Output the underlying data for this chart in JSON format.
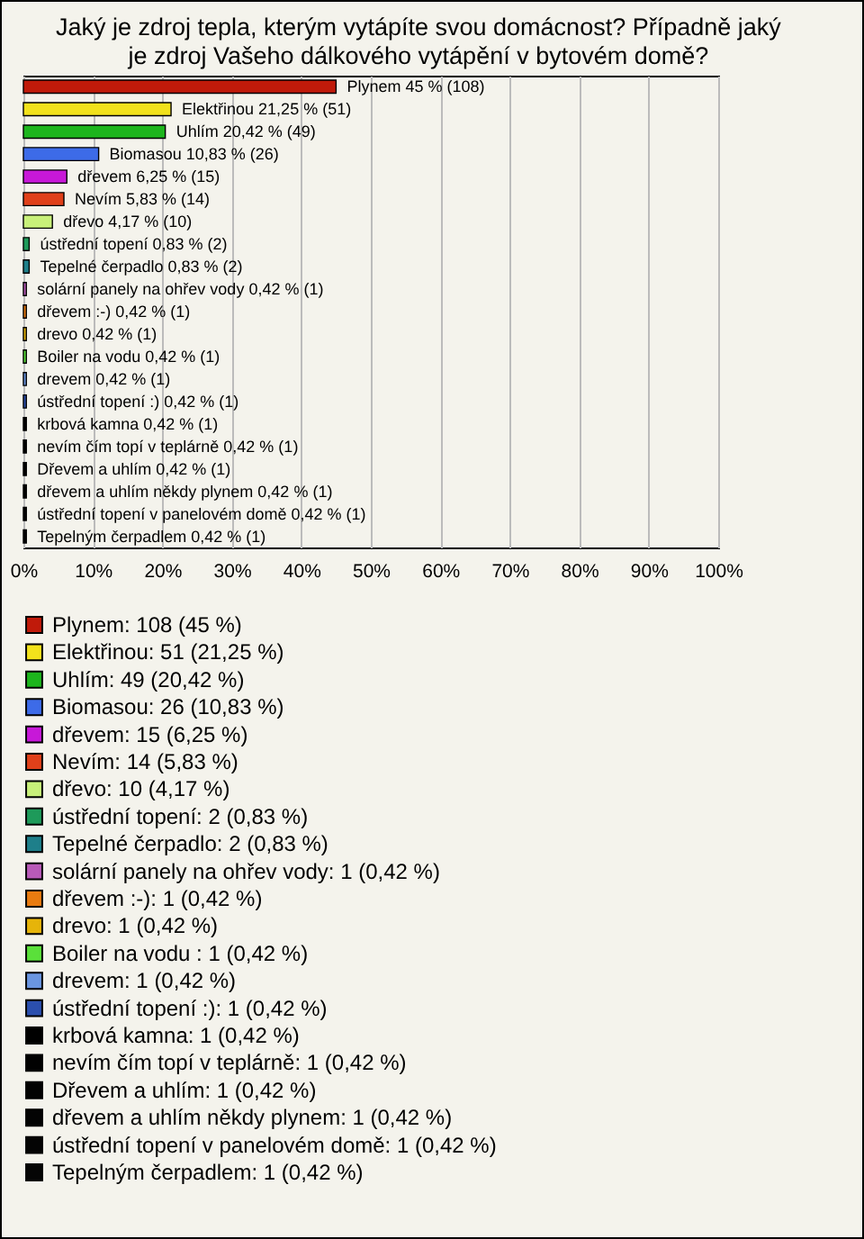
{
  "chart_data": {
    "type": "bar",
    "orientation": "horizontal",
    "title": "Jaký je zdroj tepla, kterým vytápíte svou domácnost? Případně jaký je zdroj Vašeho dálkového vytápění v bytovém domě?",
    "categories": [
      null,
      null,
      null,
      null,
      null,
      null,
      null,
      null,
      null,
      null,
      null,
      null,
      null,
      null,
      null,
      null,
      null,
      null,
      null,
      null,
      null
    ],
    "xlim": [
      0,
      100
    ],
    "xticks": [
      {
        "value": 0,
        "label": "0%"
      },
      {
        "value": 10,
        "label": "10%"
      },
      {
        "value": 20,
        "label": "20%"
      },
      {
        "value": 30,
        "label": "30%"
      },
      {
        "value": 40,
        "label": "40%"
      },
      {
        "value": 50,
        "label": "50%"
      },
      {
        "value": 60,
        "label": "60%"
      },
      {
        "value": 70,
        "label": "70%"
      },
      {
        "value": 80,
        "label": "80%"
      },
      {
        "value": 90,
        "label": "90%"
      },
      {
        "value": 100,
        "label": "100%"
      }
    ],
    "grid": "x",
    "legend": "bottom",
    "tick_labels": "x",
    "series": [
      {
        "name": "Plynem: 108 (45 %)",
        "color": "#c01a0a",
        "values": [
          45,
          null,
          null,
          null,
          null,
          null,
          null,
          null,
          null,
          null,
          null,
          null,
          null,
          null,
          null,
          null,
          null,
          null,
          null,
          null,
          null
        ],
        "value_labels": [
          "Plynem 45 % (108)",
          null,
          null,
          null,
          null,
          null,
          null,
          null,
          null,
          null,
          null,
          null,
          null,
          null,
          null,
          null,
          null,
          null,
          null,
          null,
          null
        ]
      },
      {
        "name": "Elektřinou: 51 (21,25 %)",
        "color": "#f2e21c",
        "values": [
          null,
          21.25,
          null,
          null,
          null,
          null,
          null,
          null,
          null,
          null,
          null,
          null,
          null,
          null,
          null,
          null,
          null,
          null,
          null,
          null,
          null
        ],
        "value_labels": [
          null,
          "Elektřinou 21,25 % (51)",
          null,
          null,
          null,
          null,
          null,
          null,
          null,
          null,
          null,
          null,
          null,
          null,
          null,
          null,
          null,
          null,
          null,
          null,
          null
        ]
      },
      {
        "name": "Uhlím: 49 (20,42 %)",
        "color": "#1db51d",
        "values": [
          null,
          null,
          20.42,
          null,
          null,
          null,
          null,
          null,
          null,
          null,
          null,
          null,
          null,
          null,
          null,
          null,
          null,
          null,
          null,
          null,
          null
        ],
        "value_labels": [
          null,
          null,
          "Uhlím 20,42 % (49)",
          null,
          null,
          null,
          null,
          null,
          null,
          null,
          null,
          null,
          null,
          null,
          null,
          null,
          null,
          null,
          null,
          null,
          null
        ]
      },
      {
        "name": "Biomasou: 26 (10,83 %)",
        "color": "#3d6be8",
        "values": [
          null,
          null,
          null,
          10.83,
          null,
          null,
          null,
          null,
          null,
          null,
          null,
          null,
          null,
          null,
          null,
          null,
          null,
          null,
          null,
          null,
          null
        ],
        "value_labels": [
          null,
          null,
          null,
          "Biomasou 10,83 % (26)",
          null,
          null,
          null,
          null,
          null,
          null,
          null,
          null,
          null,
          null,
          null,
          null,
          null,
          null,
          null,
          null,
          null
        ]
      },
      {
        "name": "dřevem: 15 (6,25 %)",
        "color": "#c718d8",
        "values": [
          null,
          null,
          null,
          null,
          6.25,
          null,
          null,
          null,
          null,
          null,
          null,
          null,
          null,
          null,
          null,
          null,
          null,
          null,
          null,
          null,
          null
        ],
        "value_labels": [
          null,
          null,
          null,
          null,
          "dřevem 6,25 % (15)",
          null,
          null,
          null,
          null,
          null,
          null,
          null,
          null,
          null,
          null,
          null,
          null,
          null,
          null,
          null,
          null
        ]
      },
      {
        "name": "Nevím: 14 (5,83 %)",
        "color": "#e0401a",
        "values": [
          null,
          null,
          null,
          null,
          null,
          5.83,
          null,
          null,
          null,
          null,
          null,
          null,
          null,
          null,
          null,
          null,
          null,
          null,
          null,
          null,
          null
        ],
        "value_labels": [
          null,
          null,
          null,
          null,
          null,
          "Nevím 5,83 % (14)",
          null,
          null,
          null,
          null,
          null,
          null,
          null,
          null,
          null,
          null,
          null,
          null,
          null,
          null,
          null
        ]
      },
      {
        "name": "dřevo: 10 (4,17 %)",
        "color": "#c8f07a",
        "values": [
          null,
          null,
          null,
          null,
          null,
          null,
          4.17,
          null,
          null,
          null,
          null,
          null,
          null,
          null,
          null,
          null,
          null,
          null,
          null,
          null,
          null
        ],
        "value_labels": [
          null,
          null,
          null,
          null,
          null,
          null,
          "dřevo 4,17 % (10)",
          null,
          null,
          null,
          null,
          null,
          null,
          null,
          null,
          null,
          null,
          null,
          null,
          null,
          null
        ]
      },
      {
        "name": "ústřední topení: 2 (0,83 %)",
        "color": "#1e9a5a",
        "values": [
          null,
          null,
          null,
          null,
          null,
          null,
          null,
          0.83,
          null,
          null,
          null,
          null,
          null,
          null,
          null,
          null,
          null,
          null,
          null,
          null,
          null
        ],
        "value_labels": [
          null,
          null,
          null,
          null,
          null,
          null,
          null,
          "ústřední topení 0,83 % (2)",
          null,
          null,
          null,
          null,
          null,
          null,
          null,
          null,
          null,
          null,
          null,
          null,
          null
        ]
      },
      {
        "name": "Tepelné čerpadlo: 2 (0,83 %)",
        "color": "#1e7f8a",
        "values": [
          null,
          null,
          null,
          null,
          null,
          null,
          null,
          null,
          0.83,
          null,
          null,
          null,
          null,
          null,
          null,
          null,
          null,
          null,
          null,
          null,
          null
        ],
        "value_labels": [
          null,
          null,
          null,
          null,
          null,
          null,
          null,
          null,
          "Tepelné čerpadlo 0,83 % (2)",
          null,
          null,
          null,
          null,
          null,
          null,
          null,
          null,
          null,
          null,
          null,
          null
        ]
      },
      {
        "name": "solární panely na ohřev vody: 1 (0,42 %)",
        "color": "#b85ab8",
        "values": [
          null,
          null,
          null,
          null,
          null,
          null,
          null,
          null,
          null,
          0.42,
          null,
          null,
          null,
          null,
          null,
          null,
          null,
          null,
          null,
          null,
          null
        ],
        "value_labels": [
          null,
          null,
          null,
          null,
          null,
          null,
          null,
          null,
          null,
          "solární panely na ohřev vody 0,42 % (1)",
          null,
          null,
          null,
          null,
          null,
          null,
          null,
          null,
          null,
          null,
          null
        ]
      },
      {
        "name": "dřevem :-): 1 (0,42 %)",
        "color": "#e87b10",
        "values": [
          null,
          null,
          null,
          null,
          null,
          null,
          null,
          null,
          null,
          null,
          0.42,
          null,
          null,
          null,
          null,
          null,
          null,
          null,
          null,
          null,
          null
        ],
        "value_labels": [
          null,
          null,
          null,
          null,
          null,
          null,
          null,
          null,
          null,
          null,
          "dřevem :-) 0,42 % (1)",
          null,
          null,
          null,
          null,
          null,
          null,
          null,
          null,
          null,
          null
        ]
      },
      {
        "name": "drevo: 1 (0,42 %)",
        "color": "#e6b40a",
        "values": [
          null,
          null,
          null,
          null,
          null,
          null,
          null,
          null,
          null,
          null,
          null,
          0.42,
          null,
          null,
          null,
          null,
          null,
          null,
          null,
          null,
          null
        ],
        "value_labels": [
          null,
          null,
          null,
          null,
          null,
          null,
          null,
          null,
          null,
          null,
          null,
          "drevo 0,42 % (1)",
          null,
          null,
          null,
          null,
          null,
          null,
          null,
          null,
          null
        ]
      },
      {
        "name": "Boiler na vodu : 1 (0,42 %)",
        "color": "#5ae03a",
        "values": [
          null,
          null,
          null,
          null,
          null,
          null,
          null,
          null,
          null,
          null,
          null,
          null,
          0.42,
          null,
          null,
          null,
          null,
          null,
          null,
          null,
          null
        ],
        "value_labels": [
          null,
          null,
          null,
          null,
          null,
          null,
          null,
          null,
          null,
          null,
          null,
          null,
          "Boiler na vodu  0,42 % (1)",
          null,
          null,
          null,
          null,
          null,
          null,
          null,
          null
        ]
      },
      {
        "name": "drevem: 1 (0,42 %)",
        "color": "#6a95e0",
        "values": [
          null,
          null,
          null,
          null,
          null,
          null,
          null,
          null,
          null,
          null,
          null,
          null,
          null,
          0.42,
          null,
          null,
          null,
          null,
          null,
          null,
          null
        ],
        "value_labels": [
          null,
          null,
          null,
          null,
          null,
          null,
          null,
          null,
          null,
          null,
          null,
          null,
          null,
          "drevem 0,42 % (1)",
          null,
          null,
          null,
          null,
          null,
          null,
          null
        ]
      },
      {
        "name": "ústřední topení :): 1 (0,42 %)",
        "color": "#2b4fae",
        "values": [
          null,
          null,
          null,
          null,
          null,
          null,
          null,
          null,
          null,
          null,
          null,
          null,
          null,
          null,
          0.42,
          null,
          null,
          null,
          null,
          null,
          null
        ],
        "value_labels": [
          null,
          null,
          null,
          null,
          null,
          null,
          null,
          null,
          null,
          null,
          null,
          null,
          null,
          null,
          "ústřední topení :) 0,42 % (1)",
          null,
          null,
          null,
          null,
          null,
          null
        ]
      },
      {
        "name": "krbová kamna: 1 (0,42 %)",
        "color": "#000000",
        "values": [
          null,
          null,
          null,
          null,
          null,
          null,
          null,
          null,
          null,
          null,
          null,
          null,
          null,
          null,
          null,
          0.42,
          null,
          null,
          null,
          null,
          null
        ],
        "value_labels": [
          null,
          null,
          null,
          null,
          null,
          null,
          null,
          null,
          null,
          null,
          null,
          null,
          null,
          null,
          null,
          "krbová kamna 0,42 % (1)",
          null,
          null,
          null,
          null,
          null
        ]
      },
      {
        "name": "nevím čím topí v teplárně: 1 (0,42 %)",
        "color": "#010101",
        "values": [
          null,
          null,
          null,
          null,
          null,
          null,
          null,
          null,
          null,
          null,
          null,
          null,
          null,
          null,
          null,
          null,
          0.42,
          null,
          null,
          null,
          null
        ],
        "value_labels": [
          null,
          null,
          null,
          null,
          null,
          null,
          null,
          null,
          null,
          null,
          null,
          null,
          null,
          null,
          null,
          null,
          "nevím čím topí v teplárně 0,42 % (1)",
          null,
          null,
          null,
          null
        ]
      },
      {
        "name": "Dřevem a uhlím: 1 (0,42 %)",
        "color": "#020202",
        "values": [
          null,
          null,
          null,
          null,
          null,
          null,
          null,
          null,
          null,
          null,
          null,
          null,
          null,
          null,
          null,
          null,
          null,
          0.42,
          null,
          null,
          null
        ],
        "value_labels": [
          null,
          null,
          null,
          null,
          null,
          null,
          null,
          null,
          null,
          null,
          null,
          null,
          null,
          null,
          null,
          null,
          null,
          "Dřevem a uhlím 0,42 % (1)",
          null,
          null,
          null
        ]
      },
      {
        "name": "dřevem a uhlím někdy plynem: 1 (0,42 %)",
        "color": "#030303",
        "values": [
          null,
          null,
          null,
          null,
          null,
          null,
          null,
          null,
          null,
          null,
          null,
          null,
          null,
          null,
          null,
          null,
          null,
          null,
          0.42,
          null,
          null
        ],
        "value_labels": [
          null,
          null,
          null,
          null,
          null,
          null,
          null,
          null,
          null,
          null,
          null,
          null,
          null,
          null,
          null,
          null,
          null,
          null,
          "dřevem a uhlím někdy plynem 0,42 % (1)",
          null,
          null
        ]
      },
      {
        "name": "ústřední topení v panelovém domě: 1 (0,42 %)",
        "color": "#040404",
        "values": [
          null,
          null,
          null,
          null,
          null,
          null,
          null,
          null,
          null,
          null,
          null,
          null,
          null,
          null,
          null,
          null,
          null,
          null,
          null,
          0.42,
          null
        ],
        "value_labels": [
          null,
          null,
          null,
          null,
          null,
          null,
          null,
          null,
          null,
          null,
          null,
          null,
          null,
          null,
          null,
          null,
          null,
          null,
          null,
          "ústřední topení v panelovém domě 0,42 % (1)",
          null
        ]
      },
      {
        "name": "Tepelným čerpadlem: 1 (0,42 %)",
        "color": "#050505",
        "values": [
          null,
          null,
          null,
          null,
          null,
          null,
          null,
          null,
          null,
          null,
          null,
          null,
          null,
          null,
          null,
          null,
          null,
          null,
          null,
          null,
          0.42
        ],
        "value_labels": [
          null,
          null,
          null,
          null,
          null,
          null,
          null,
          null,
          null,
          null,
          null,
          null,
          null,
          null,
          null,
          null,
          null,
          null,
          null,
          null,
          "Tepelným čerpadlem 0,42 % (1)"
        ]
      }
    ]
  }
}
